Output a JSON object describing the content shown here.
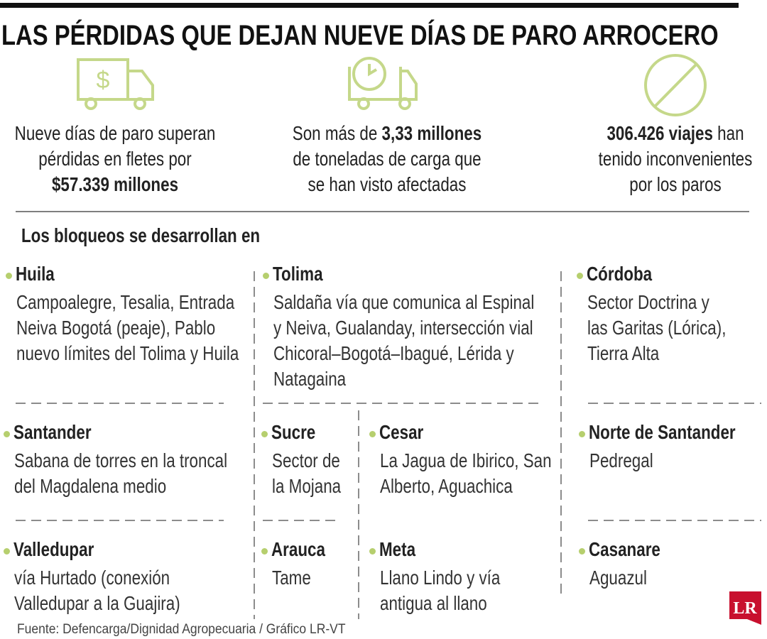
{
  "header": {
    "title": "LAS PÉRDIDAS QUE DEJAN NUEVE DÍAS DE PARO ARROCERO"
  },
  "stats": [
    {
      "lines": [
        [
          {
            "text": "Nueve días de paro superan"
          }
        ],
        [
          {
            "text": "pérdidas en fletes por"
          }
        ],
        [
          {
            "text": "$57.339 millones",
            "bold": true
          }
        ]
      ]
    },
    {
      "lines": [
        [
          {
            "text": "Son más de "
          },
          {
            "text": "3,33 millones",
            "bold": true
          }
        ],
        [
          {
            "text": "de toneladas de carga que"
          }
        ],
        [
          {
            "text": "se han visto afectadas"
          }
        ]
      ]
    },
    {
      "lines": [
        [
          {
            "text": "306.426 viajes",
            "bold": true
          },
          {
            "text": " han"
          }
        ],
        [
          {
            "text": "tenido inconvenientes"
          }
        ],
        [
          {
            "text": "por los paros"
          }
        ]
      ]
    }
  ],
  "section_title": "Los bloqueos se desarrollan en",
  "regions": [
    {
      "name": "Huila",
      "lines": [
        "Campoalegre, Tesalia, Entrada",
        "Neiva Bogotá (peaje), Pablo",
        "nuevo límites del Tolima y Huila"
      ]
    },
    {
      "name": "Tolima",
      "lines": [
        "Saldaña vía que comunica al Espinal",
        "y Neiva, Gualanday, intersección vial",
        "Chicoral–Bogotá–Ibagué, Lérida y",
        "Natagaina"
      ]
    },
    {
      "name": "Córdoba",
      "lines": [
        "Sector Doctrina y",
        "las Garitas (Lórica),",
        "Tierra Alta"
      ]
    },
    {
      "name": "Santander",
      "lines": [
        "Sabana de torres en la troncal",
        "del Magdalena medio"
      ]
    },
    {
      "name": "Sucre",
      "lines": [
        "Sector de",
        "la Mojana"
      ]
    },
    {
      "name": "Cesar",
      "lines": [
        "La Jagua de Ibirico, San",
        "Alberto, Aguachica"
      ]
    },
    {
      "name": "Norte de Santander",
      "lines": [
        "Pedregal"
      ]
    },
    {
      "name": "Valledupar",
      "lines": [
        "vía Hurtado (conexión",
        "Valledupar a la Guajira)"
      ]
    },
    {
      "name": "Arauca",
      "lines": [
        "Tame"
      ]
    },
    {
      "name": "Meta",
      "lines": [
        "Llano Lindo y vía",
        "antigua al llano"
      ]
    },
    {
      "name": "Casanare",
      "lines": [
        "Aguazul"
      ]
    }
  ],
  "source": "Fuente: Defencarga/Dignidad Agropecuaria  / Gráfico LR-VT",
  "logo": "LR"
}
